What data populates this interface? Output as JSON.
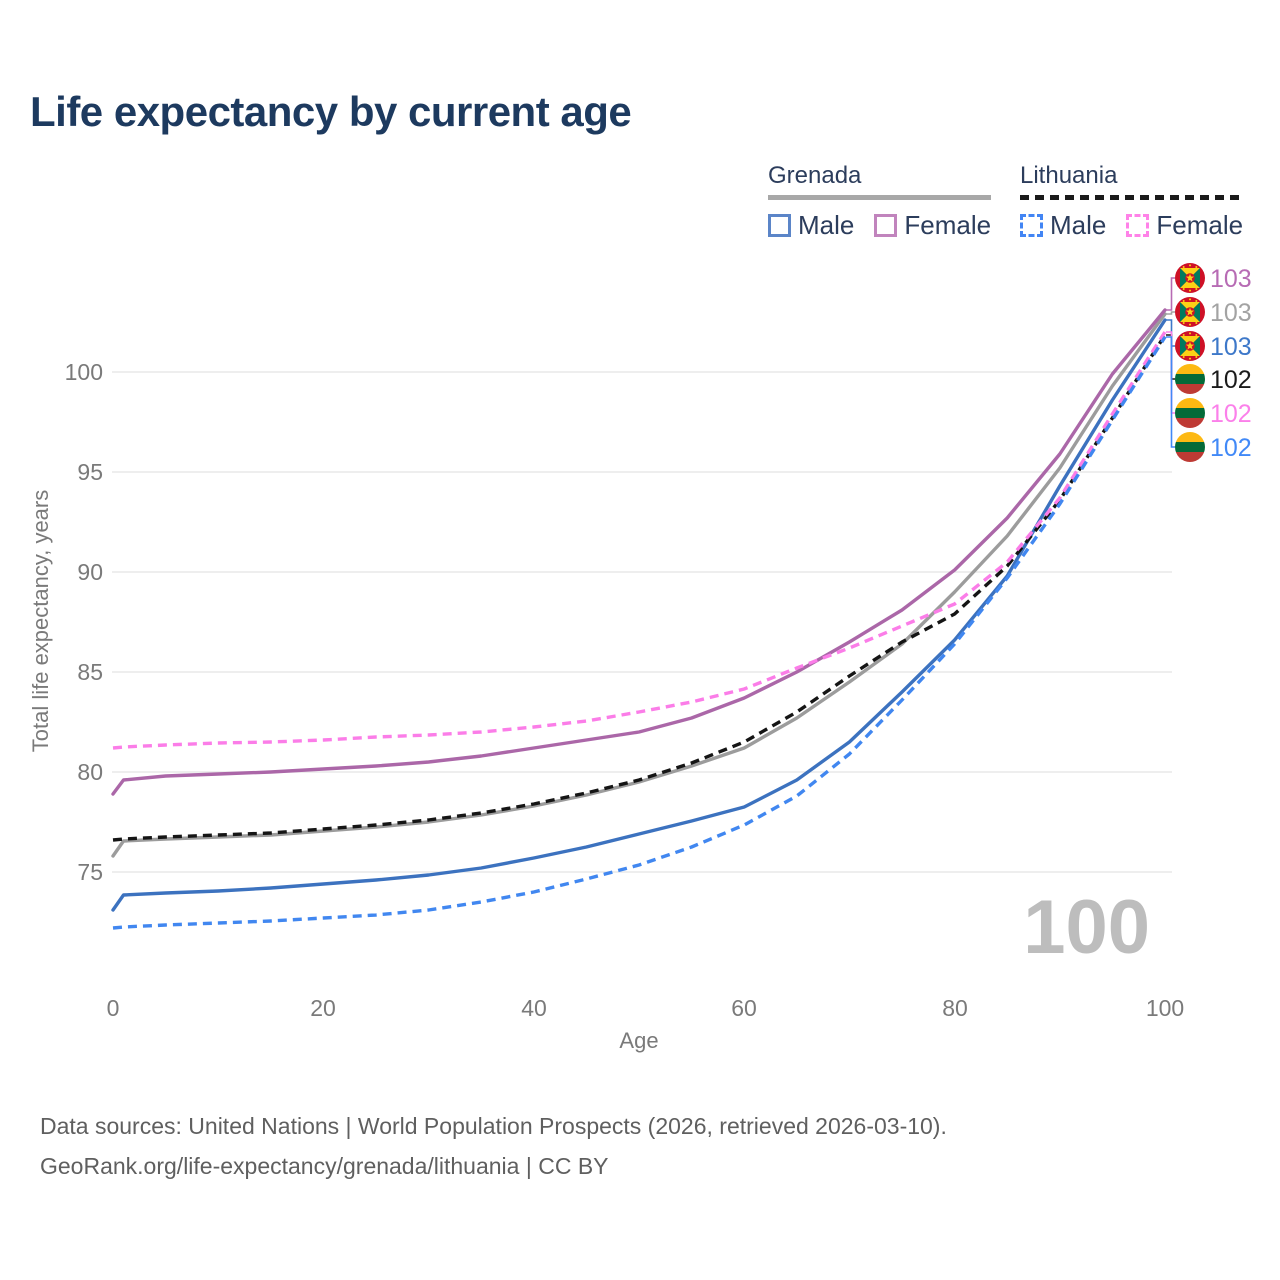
{
  "title": "Life expectancy by current age",
  "legend": {
    "groups": [
      {
        "country": "Grenada",
        "style": "solid",
        "underline_color": "#a8a8a8",
        "items": [
          {
            "label": "Male",
            "color": "#5b85c8",
            "dashed": false
          },
          {
            "label": "Female",
            "color": "#c184bd",
            "dashed": false
          }
        ]
      },
      {
        "country": "Lithuania",
        "style": "dashed",
        "underline_color": "#1a1a1a",
        "items": [
          {
            "label": "Male",
            "color": "#4285f4",
            "dashed": true
          },
          {
            "label": "Female",
            "color": "#ff82e8",
            "dashed": true
          }
        ]
      }
    ]
  },
  "chart_data": {
    "type": "line",
    "title": "Life expectancy by current age",
    "xlabel": "Age",
    "ylabel": "Total life expectancy, years",
    "x_ticks": [
      0,
      20,
      40,
      60,
      80,
      100
    ],
    "y_ticks": [
      75,
      80,
      85,
      90,
      95,
      100
    ],
    "xlim": [
      0,
      100
    ],
    "ylim": [
      71.5,
      103.5
    ],
    "grid": "horizontal",
    "current_age_display": "100",
    "x": [
      0,
      1,
      5,
      10,
      15,
      20,
      25,
      30,
      35,
      40,
      45,
      50,
      55,
      60,
      65,
      70,
      75,
      80,
      85,
      90,
      95,
      100
    ],
    "series": [
      {
        "name": "Grenada Female",
        "color": "#ab67a8",
        "dashed": false,
        "values": [
          78.9,
          79.6,
          79.8,
          79.9,
          80.0,
          80.15,
          80.3,
          80.5,
          80.8,
          81.2,
          81.6,
          82.0,
          82.7,
          83.7,
          85.0,
          86.5,
          88.1,
          90.1,
          92.7,
          95.9,
          99.9,
          103.1
        ]
      },
      {
        "name": "Grenada Both sexes",
        "color": "#9c9c9c",
        "dashed": false,
        "values": [
          75.8,
          76.55,
          76.65,
          76.75,
          76.85,
          77.05,
          77.25,
          77.5,
          77.85,
          78.3,
          78.85,
          79.5,
          80.3,
          81.2,
          82.7,
          84.5,
          86.4,
          89.0,
          91.8,
          95.2,
          99.3,
          102.9
        ]
      },
      {
        "name": "Grenada Male",
        "color": "#3c72bf",
        "dashed": false,
        "values": [
          73.1,
          73.85,
          73.95,
          74.05,
          74.2,
          74.4,
          74.6,
          74.85,
          75.2,
          75.7,
          76.25,
          76.9,
          77.55,
          78.25,
          79.6,
          81.5,
          84.0,
          86.6,
          89.8,
          94.3,
          98.6,
          102.6
        ]
      },
      {
        "name": "Lithuania Both sexes",
        "color": "#151515",
        "dashed": true,
        "values": [
          76.6,
          76.65,
          76.75,
          76.85,
          76.95,
          77.15,
          77.35,
          77.6,
          77.95,
          78.4,
          78.95,
          79.6,
          80.45,
          81.5,
          83.0,
          84.8,
          86.5,
          87.9,
          90.3,
          93.6,
          97.7,
          101.85
        ]
      },
      {
        "name": "Lithuania Female",
        "color": "#fb7de8",
        "dashed": true,
        "values": [
          81.2,
          81.25,
          81.35,
          81.45,
          81.5,
          81.6,
          81.75,
          81.85,
          82.0,
          82.25,
          82.55,
          83.0,
          83.5,
          84.15,
          85.2,
          86.2,
          87.3,
          88.4,
          90.5,
          93.7,
          97.9,
          102.0
        ]
      },
      {
        "name": "Lithuania Male",
        "color": "#4187f0",
        "dashed": true,
        "values": [
          72.2,
          72.25,
          72.35,
          72.45,
          72.55,
          72.7,
          72.85,
          73.1,
          73.5,
          74.0,
          74.65,
          75.35,
          76.25,
          77.35,
          78.8,
          80.9,
          83.6,
          86.4,
          89.7,
          93.4,
          97.6,
          101.75
        ]
      }
    ],
    "end_labels": [
      {
        "value": "103",
        "flag": "grenada-flag",
        "color": "#b76bb4"
      },
      {
        "value": "103",
        "flag": "grenada-flag",
        "color": "#a3a3a3"
      },
      {
        "value": "103",
        "flag": "grenada-flag",
        "color": "#3d78c9"
      },
      {
        "value": "102",
        "flag": "lithuania-flag",
        "color": "#1b1b1b"
      },
      {
        "value": "102",
        "flag": "lithuania-flag",
        "color": "#fb80ea"
      },
      {
        "value": "102",
        "flag": "lithuania-flag",
        "color": "#4189f7"
      }
    ]
  },
  "footer": {
    "line1": "Data sources: United Nations | World Population Prospects (2026, retrieved 2026-03-10).",
    "line2": "GeoRank.org/life-expectancy/grenada/lithuania | CC BY"
  }
}
